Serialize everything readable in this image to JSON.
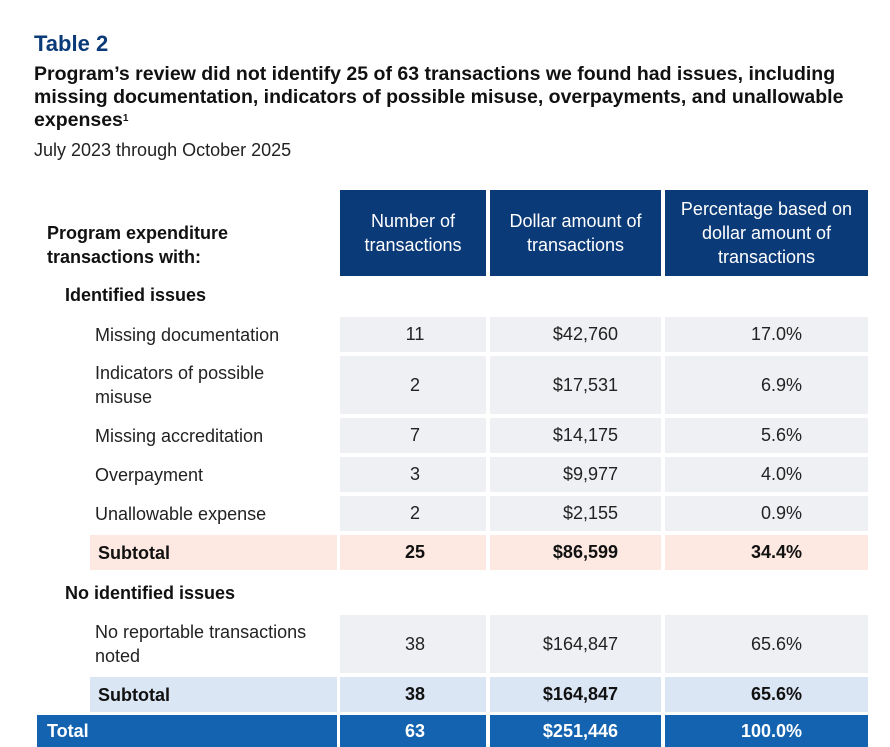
{
  "table_label": "Table 2",
  "title": "Program’s review did not identify 25 of 63 transactions we found had issues, including missing documentation, indicators of possible misuse, overpayments, and unallowable expenses",
  "title_footnote": "1",
  "subtitle": "July 2023 through October 2025",
  "header": {
    "row_label": "Program expenditure transactions with:",
    "col_count": "Number of transactions",
    "col_amount": "Dollar amount of transactions",
    "col_pct": "Percentage based on dollar amount of transactions"
  },
  "identified": {
    "heading": "Identified issues",
    "rows": [
      {
        "label": "Missing documentation",
        "count": "11",
        "amount": "$42,760",
        "pct": "17.0%"
      },
      {
        "label": "Indicators of possible misuse",
        "count": "2",
        "amount": "$17,531",
        "pct": "6.9%"
      },
      {
        "label": "Missing accreditation",
        "count": "7",
        "amount": "$14,175",
        "pct": "5.6%"
      },
      {
        "label": "Overpayment",
        "count": "3",
        "amount": "$9,977",
        "pct": "4.0%"
      },
      {
        "label": "Unallowable expense",
        "count": "2",
        "amount": "$2,155",
        "pct": "0.9%"
      }
    ],
    "subtotal": {
      "label": "Subtotal",
      "count": "25",
      "amount": "$86,599",
      "pct": "34.4%"
    }
  },
  "none": {
    "heading": "No identified issues",
    "rows": [
      {
        "label": "No reportable transactions noted",
        "count": "38",
        "amount": "$164,847",
        "pct": "65.6%"
      }
    ],
    "subtotal": {
      "label": "Subtotal",
      "count": "38",
      "amount": "$164,847",
      "pct": "65.6%"
    }
  },
  "total": {
    "label": "Total",
    "count": "63",
    "amount": "$251,446",
    "pct": "100.0%"
  },
  "colors": {
    "header_blue": "#0b3a78",
    "total_blue": "#1363b0",
    "subtotal_orange": "#fde9e1",
    "subtotal_blue": "#dbe6f4",
    "row_gray": "#eff0f3"
  }
}
